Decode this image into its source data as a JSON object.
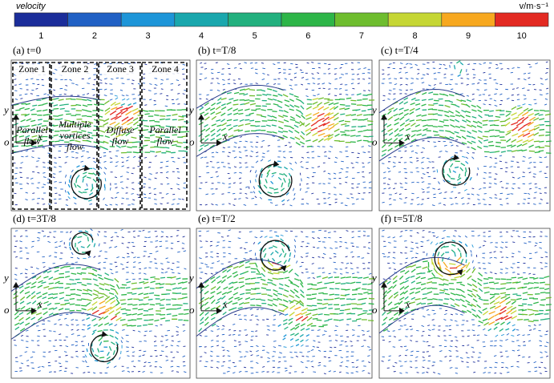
{
  "colorbar": {
    "title": "velocity",
    "unit": "v/m·s⁻¹",
    "ticks": [
      1,
      2,
      3,
      4,
      5,
      6,
      7,
      8,
      9,
      10
    ],
    "colors": [
      "#1b2d9a",
      "#2060c4",
      "#1d95d8",
      "#1aa7ad",
      "#22b07e",
      "#2db548",
      "#6ebd2e",
      "#c5d634",
      "#f7a81f",
      "#e32a22"
    ]
  },
  "axis_labels": {
    "y": "y",
    "o": "o",
    "x": "x"
  },
  "panels": [
    {
      "label": "(a) t=0"
    },
    {
      "label": "(b) t=T/8"
    },
    {
      "label": "(c) t=T/4"
    },
    {
      "label": "(d) t=3T/8"
    },
    {
      "label": "(e) t=T/2"
    },
    {
      "label": "(f) t=5T/8"
    }
  ],
  "zones": [
    {
      "name": "Zone 1",
      "flow": [
        "Parallel",
        "flow"
      ]
    },
    {
      "name": "Zone 2",
      "flow": [
        "Multiple",
        "vortices",
        "flow"
      ]
    },
    {
      "name": "Zone 3",
      "flow": [
        "Diffuse",
        "flow"
      ]
    },
    {
      "name": "Zone 4",
      "flow": [
        "Parallel",
        "flow"
      ]
    }
  ]
}
